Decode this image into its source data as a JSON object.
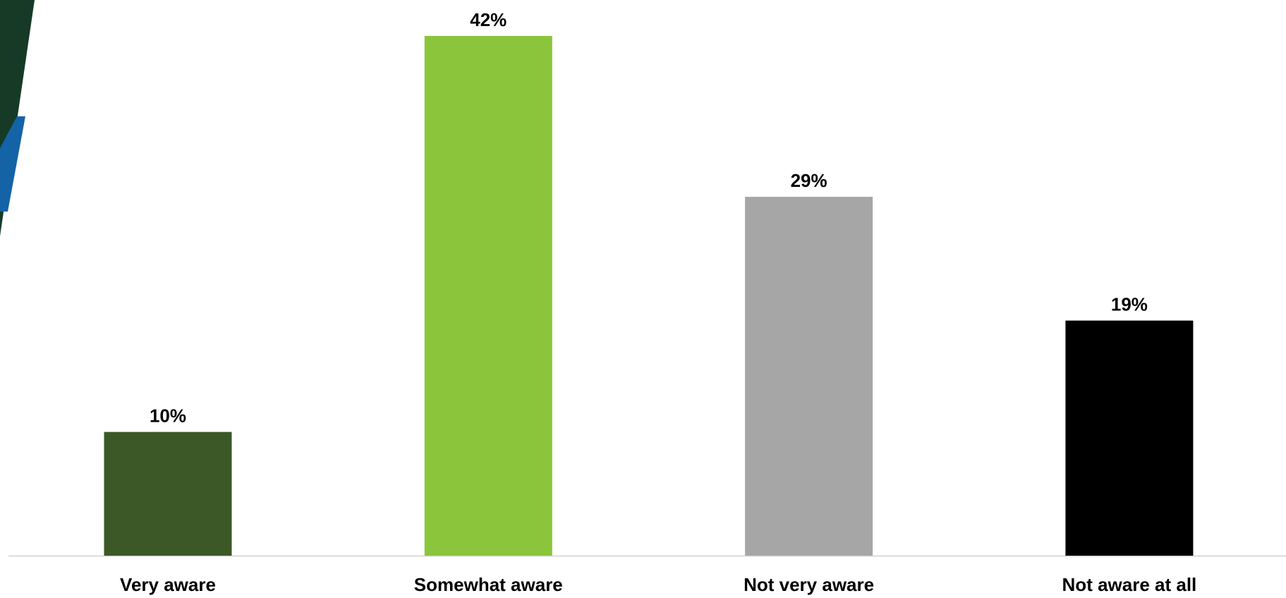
{
  "chart_data": {
    "type": "bar",
    "categories": [
      "Very aware",
      "Somewhat aware",
      "Not very aware",
      "Not aware at all"
    ],
    "values": [
      10,
      42,
      29,
      19
    ],
    "value_labels": [
      "10%",
      "42%",
      "29%",
      "19%"
    ],
    "colors": [
      "#3b5826",
      "#8bc53b",
      "#a6a6a6",
      "#000000"
    ]
  }
}
